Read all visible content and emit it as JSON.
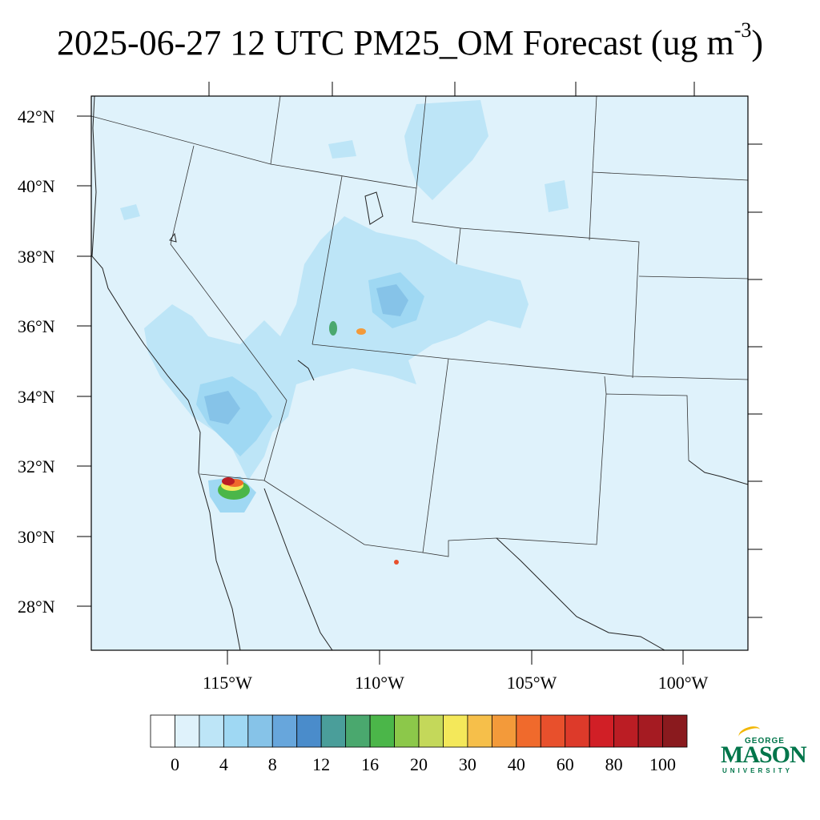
{
  "title": {
    "text": "2025-06-27 12 UTC PM25_OM Forecast (ug m",
    "superscript": "-3",
    "close": ")"
  },
  "map": {
    "lat_labels": [
      "42°N",
      "40°N",
      "38°N",
      "36°N",
      "34°N",
      "32°N",
      "30°N",
      "28°N"
    ],
    "lon_labels": [
      "115°W",
      "110°W",
      "105°W",
      "100°W"
    ],
    "background_color": "#dff2fb",
    "line_color": "#333333"
  },
  "colorbar": {
    "colors": [
      "#ffffff",
      "#dff2fb",
      "#bde5f7",
      "#9fd8f3",
      "#86c3e8",
      "#67a6dc",
      "#4a8ccb",
      "#4a9e9a",
      "#4aa86e",
      "#4bb649",
      "#8cc84a",
      "#c4d85a",
      "#f4e85a",
      "#f6bf4a",
      "#f39a3a",
      "#f06a2c",
      "#e8502c",
      "#dd3a2a",
      "#d11f26",
      "#bb1d24",
      "#a51b22",
      "#8a1a1e"
    ],
    "labels": [
      "0",
      "4",
      "8",
      "12",
      "16",
      "20",
      "30",
      "40",
      "60",
      "80",
      "100"
    ]
  },
  "logo": {
    "top": "GEORGE",
    "main": "MASON",
    "sub": "UNIVERSITY"
  }
}
